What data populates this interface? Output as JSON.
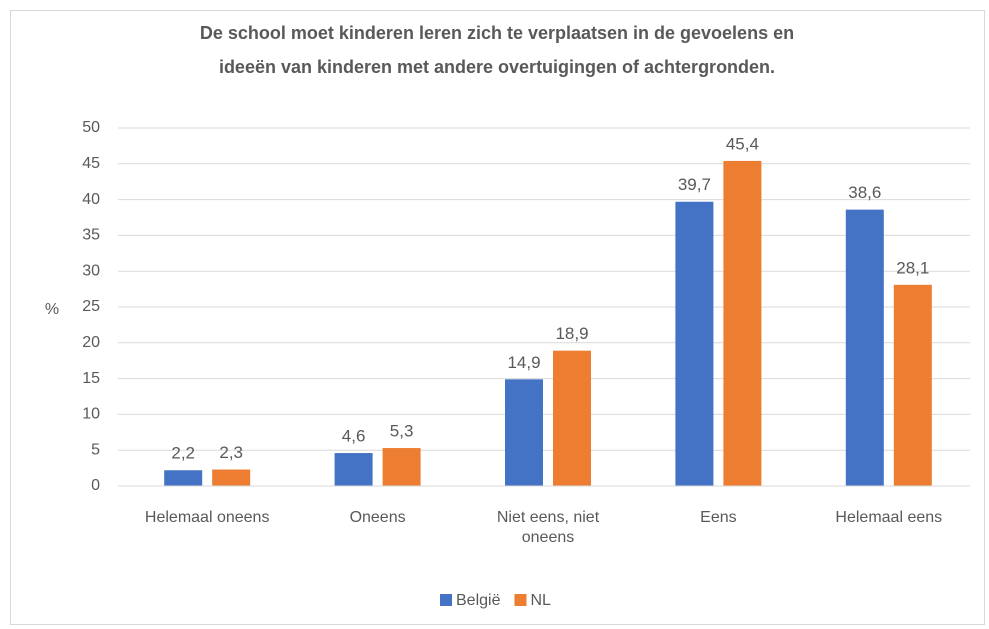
{
  "chart_data": {
    "type": "bar",
    "title": [
      "De school moet kinderen leren zich te verplaatsen in de gevoelens en",
      "ideeën van kinderen met andere overtuigingen of achtergronden."
    ],
    "y_label": "%",
    "categories": [
      "Helemaal oneens",
      "Oneens",
      "Niet eens, niet oneens",
      "Eens",
      "Helemaal eens"
    ],
    "series": [
      {
        "name": "België",
        "color": "#4472c4",
        "values": [
          2.2,
          4.6,
          14.9,
          39.7,
          38.6
        ],
        "value_labels": [
          "2,2",
          "4,6",
          "14,9",
          "39,7",
          "38,6"
        ]
      },
      {
        "name": "NL",
        "color": "#ed7d31",
        "values": [
          2.3,
          5.3,
          18.9,
          45.4,
          28.1
        ],
        "value_labels": [
          "2,3",
          "5,3",
          "18,9",
          "45,4",
          "28,1"
        ]
      }
    ],
    "ylim": [
      0,
      50
    ],
    "yticks": [
      0,
      5,
      10,
      15,
      20,
      25,
      30,
      35,
      40,
      45,
      50
    ],
    "grid": true,
    "legend": "bottom"
  }
}
